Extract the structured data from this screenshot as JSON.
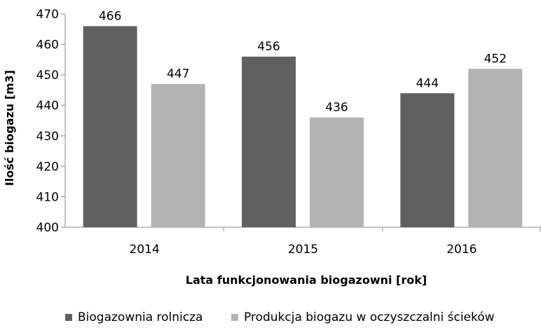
{
  "chart_data": {
    "type": "bar",
    "categories": [
      "2014",
      "2015",
      "2016"
    ],
    "series": [
      {
        "name": "Biogazownia rolnicza",
        "values": [
          466,
          456,
          444
        ],
        "color": "#606060"
      },
      {
        "name": "Produkcja biogazu w oczyszczalni ścieków",
        "values": [
          447,
          436,
          452
        ],
        "color": "#b3b3b3"
      }
    ],
    "ylim": [
      400,
      470
    ],
    "yticks": [
      "400",
      "410",
      "420",
      "430",
      "440",
      "450",
      "460",
      "470"
    ],
    "xlabel": "Lata funkcjonowania biogazowni [rok]",
    "ylabel": "Ilość biogazu [m3]",
    "grid": false,
    "legend_position": "bottom"
  }
}
